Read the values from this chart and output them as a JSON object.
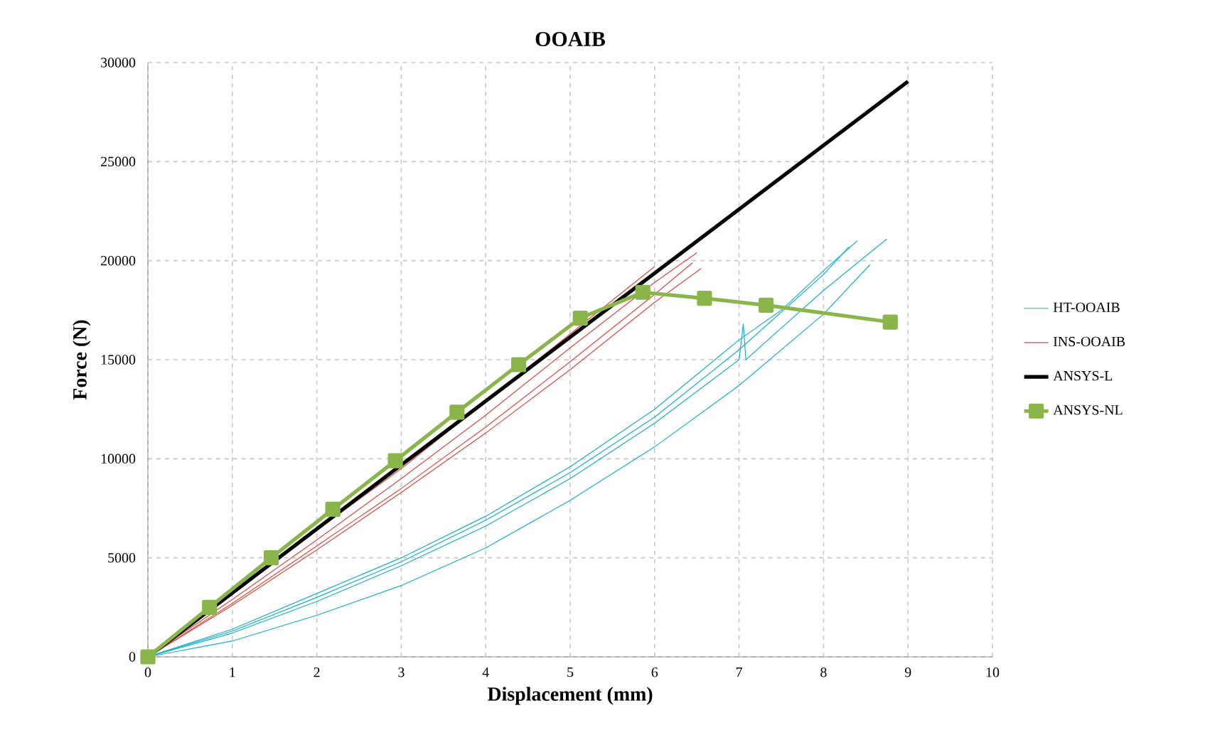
{
  "chart_data": {
    "type": "line",
    "title": "OOAIB",
    "xlabel": "Displacement (mm)",
    "ylabel": "Force (N)",
    "xlim": [
      0,
      10
    ],
    "ylim": [
      0,
      30000
    ],
    "xticks": [
      0,
      1,
      2,
      3,
      4,
      5,
      6,
      7,
      8,
      9,
      10
    ],
    "yticks": [
      0,
      5000,
      10000,
      15000,
      20000,
      25000,
      30000
    ],
    "grid": true,
    "legend": "right",
    "marker": "none",
    "line_style": "solid",
    "series": [
      {
        "name": "HT-OOAIB",
        "color": "#17b0c8",
        "x": [
          0,
          1,
          2,
          3,
          4,
          5,
          6,
          7,
          7.5,
          8,
          8.4
        ],
        "values": [
          0,
          1400,
          3200,
          5000,
          7100,
          9600,
          12500,
          16000,
          17500,
          19500,
          21000
        ]
      },
      {
        "name": "INS-OOAIB",
        "color": "#e0483e",
        "x": [
          0,
          1,
          2,
          3,
          4,
          5,
          6
        ],
        "values": [
          0,
          3300,
          6400,
          9500,
          12900,
          16300,
          19700
        ]
      },
      {
        "name": "ANSYS-L",
        "color": "#000000",
        "x": [
          0,
          9
        ],
        "values": [
          0,
          29050
        ]
      },
      {
        "name": "ANSYS-NL",
        "color": "#8ab54a",
        "marker": "square",
        "x": [
          0,
          0.73,
          1.46,
          2.19,
          2.93,
          3.66,
          4.39,
          5.12,
          5.86,
          6.59,
          7.32,
          8.79
        ],
        "values": [
          0,
          2500,
          5000,
          7450,
          9900,
          12350,
          14750,
          17100,
          18400,
          18100,
          17750,
          16900
        ]
      },
      {
        "color": "#17b0c8",
        "x": [
          0,
          1,
          2,
          3,
          4,
          5,
          6,
          7,
          8,
          8.3
        ],
        "values": [
          0,
          1300,
          3000,
          4800,
          6900,
          9300,
          12100,
          15500,
          19300,
          20700
        ]
      },
      {
        "color": "#17b0c8",
        "x": [
          0,
          1,
          2,
          3,
          4,
          5,
          6,
          7,
          7.05,
          7.08,
          7.5,
          8,
          8.75
        ],
        "values": [
          0,
          1200,
          2800,
          4600,
          6600,
          9000,
          11800,
          15000,
          16800,
          15000,
          16600,
          18500,
          21100
        ]
      },
      {
        "color": "#17b0c8",
        "x": [
          0,
          1,
          2,
          3,
          4,
          5,
          6,
          7,
          8,
          8.55
        ],
        "values": [
          0,
          800,
          2100,
          3600,
          5500,
          7900,
          10600,
          13700,
          17300,
          19800
        ]
      },
      {
        "color": "#e0483e",
        "x": [
          0,
          1,
          2,
          3,
          4,
          5,
          6,
          6.5
        ],
        "values": [
          0,
          2900,
          5900,
          9000,
          12200,
          15600,
          18900,
          20400
        ]
      },
      {
        "color": "#e0483e",
        "x": [
          0,
          1,
          2,
          3,
          4,
          5,
          6,
          6.45
        ],
        "values": [
          0,
          2700,
          5600,
          8500,
          11600,
          14900,
          18300,
          19900
        ]
      },
      {
        "color": "#e0483e",
        "x": [
          0,
          1,
          2,
          3,
          4,
          5,
          6,
          6.55
        ],
        "values": [
          0,
          2600,
          5400,
          8300,
          11300,
          14500,
          17900,
          19600
        ]
      }
    ]
  }
}
